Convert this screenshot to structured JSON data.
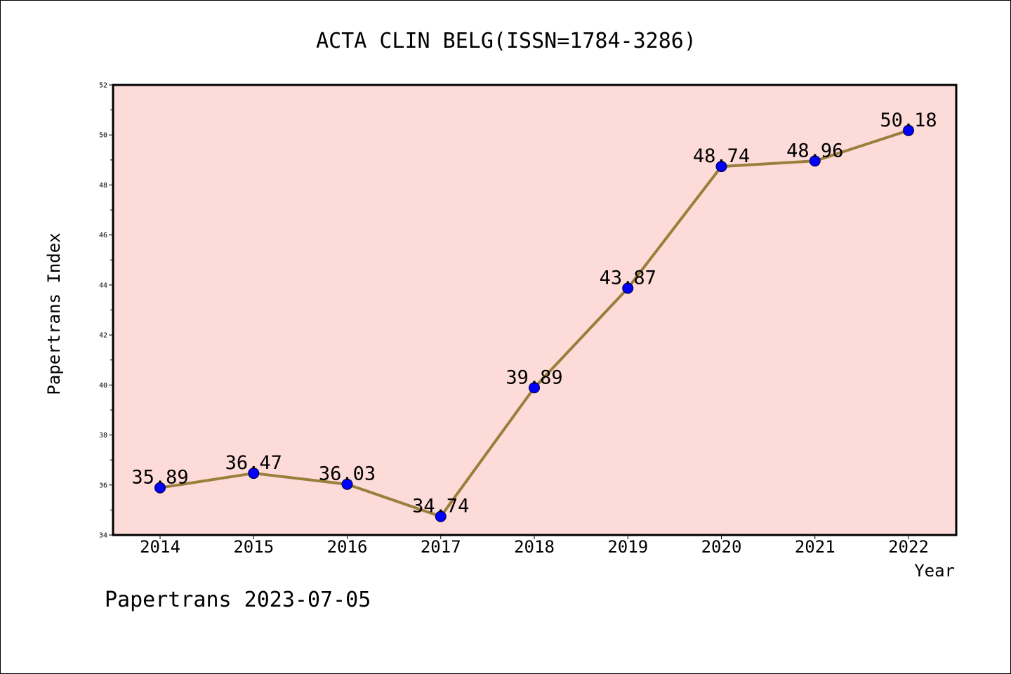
{
  "chart_data": {
    "type": "line",
    "title": "ACTA CLIN BELG(ISSN=1784-3286)",
    "xlabel": "Year",
    "ylabel": "Papertrans Index",
    "x": [
      "2014",
      "2015",
      "2016",
      "2017",
      "2018",
      "2019",
      "2020",
      "2021",
      "2022"
    ],
    "values": [
      35.89,
      36.47,
      36.03,
      34.74,
      39.89,
      43.87,
      48.74,
      48.96,
      50.18
    ],
    "data_labels": [
      "35.89",
      "36.47",
      "36.03",
      "34.74",
      "39.89",
      "43.87",
      "48.74",
      "48.96",
      "50.18"
    ],
    "ylim": [
      34,
      52
    ],
    "yticks": [
      "34",
      "36",
      "38",
      "40",
      "42",
      "44",
      "46",
      "48",
      "50",
      "52"
    ],
    "plot_background": "#fddbd8",
    "line_color": "#9a7f3c",
    "marker_color": "#0000ff",
    "grid": false,
    "legend": "none"
  },
  "footer": {
    "note": "Papertrans 2023-07-05"
  }
}
